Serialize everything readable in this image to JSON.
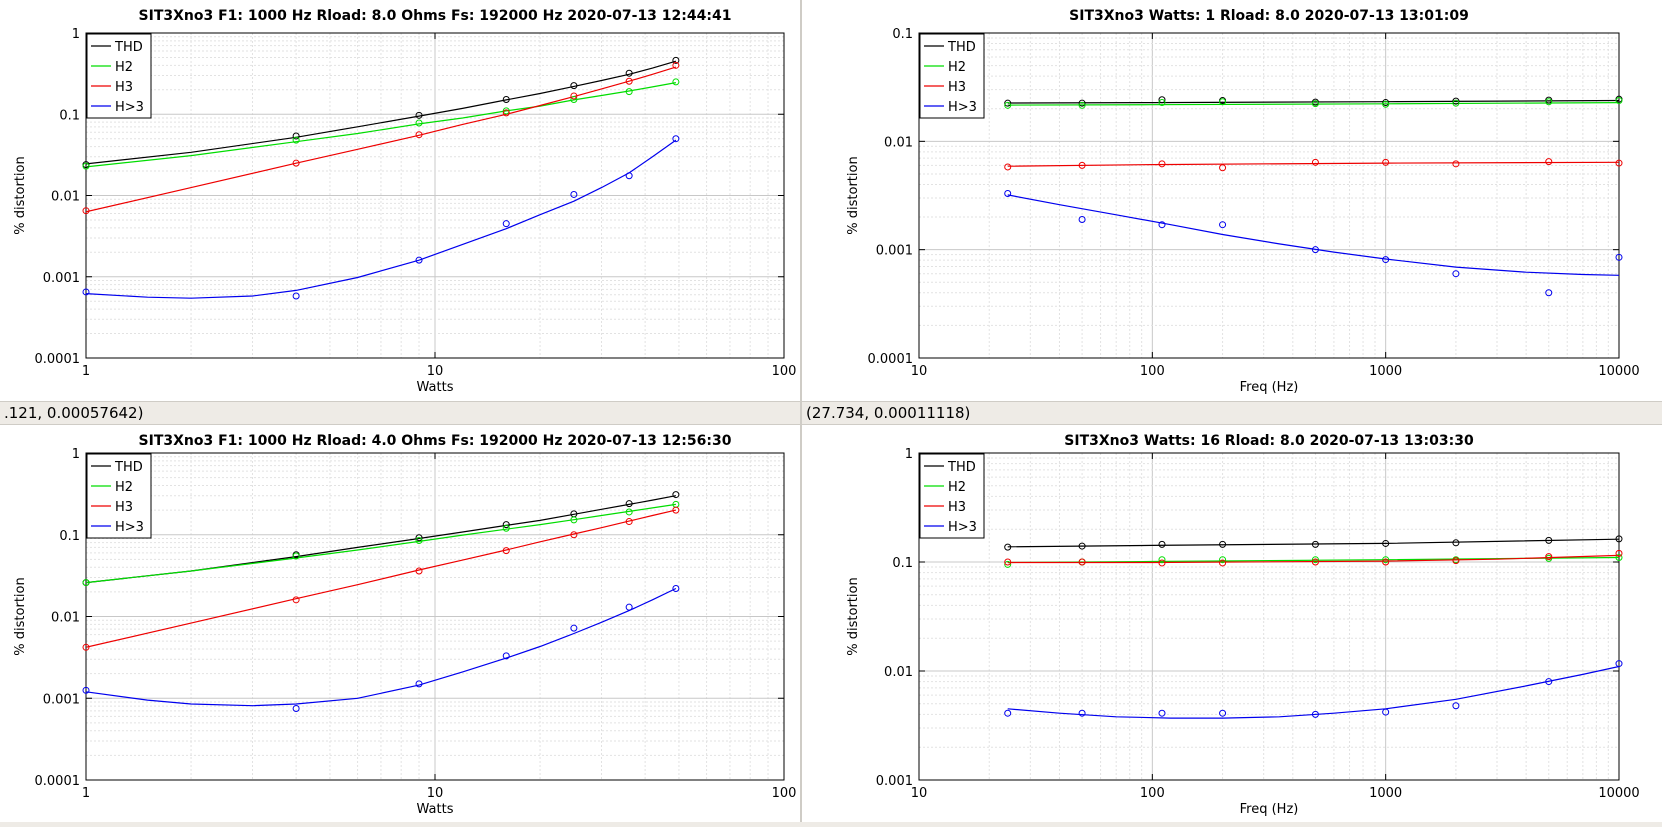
{
  "status": {
    "left_coords": ".121, 0.00057642)",
    "right_coords": "(27.734, 0.00011118)"
  },
  "colors": {
    "THD": "#000000",
    "H2": "#00dd00",
    "H3": "#ee0000",
    "H>3": "#0000ee"
  },
  "chart_data": [
    {
      "type": "line",
      "title": "SIT3Xno3   F1: 1000 Hz   Rload: 8.0 Ohms   Fs: 192000 Hz  2020-07-13 12:44:41",
      "xlabel": "Watts",
      "ylabel": "% distortion",
      "xscale": "log",
      "yscale": "log",
      "xlim": [
        1,
        100
      ],
      "ylim": [
        0.0001,
        1
      ],
      "xticks": [
        1,
        10,
        100
      ],
      "xticklabels": [
        "1",
        "10",
        "100"
      ],
      "yticks": [
        0.0001,
        0.001,
        0.01,
        0.1,
        1
      ],
      "yticklabels": [
        "0.0001",
        "0.001",
        "0.01",
        "0.1",
        "1"
      ],
      "grid": true,
      "legend_position": "top-left",
      "series": [
        {
          "name": "THD",
          "x": [
            1,
            4,
            9,
            16,
            25,
            36,
            49
          ],
          "y": [
            0.024,
            0.054,
            0.097,
            0.152,
            0.225,
            0.32,
            0.46
          ]
        },
        {
          "name": "H2",
          "x": [
            1,
            4,
            9,
            16,
            25,
            36,
            49
          ],
          "y": [
            0.023,
            0.048,
            0.078,
            0.11,
            0.152,
            0.19,
            0.25
          ]
        },
        {
          "name": "H3",
          "x": [
            1,
            4,
            9,
            16,
            25,
            36,
            49
          ],
          "y": [
            0.0065,
            0.025,
            0.056,
            0.104,
            0.168,
            0.255,
            0.4
          ]
        },
        {
          "name": "H>3",
          "x": [
            1,
            4,
            9,
            16,
            25,
            36,
            49
          ],
          "y": [
            0.00065,
            0.00058,
            0.0016,
            0.0045,
            0.0103,
            0.0175,
            0.05
          ]
        }
      ],
      "fits": [
        {
          "name": "THD",
          "x": [
            1,
            2,
            4,
            6,
            9,
            12,
            16,
            20,
            25,
            30,
            36,
            42,
            49
          ],
          "y": [
            0.0245,
            0.034,
            0.052,
            0.07,
            0.095,
            0.118,
            0.15,
            0.18,
            0.22,
            0.26,
            0.31,
            0.37,
            0.45
          ]
        },
        {
          "name": "H2",
          "x": [
            1,
            2,
            4,
            6,
            9,
            12,
            16,
            20,
            25,
            30,
            36,
            42,
            49
          ],
          "y": [
            0.0225,
            0.031,
            0.046,
            0.058,
            0.076,
            0.09,
            0.11,
            0.126,
            0.15,
            0.17,
            0.193,
            0.217,
            0.245
          ]
        },
        {
          "name": "H3",
          "x": [
            1,
            2,
            4,
            6,
            9,
            12,
            16,
            20,
            25,
            30,
            36,
            42,
            49
          ],
          "y": [
            0.0063,
            0.0125,
            0.025,
            0.037,
            0.055,
            0.075,
            0.1,
            0.128,
            0.165,
            0.205,
            0.255,
            0.31,
            0.38
          ]
        },
        {
          "name": "H>3",
          "x": [
            1,
            1.5,
            2,
            3,
            4,
            6,
            9,
            12,
            16,
            20,
            25,
            30,
            36,
            42,
            49
          ],
          "y": [
            0.00062,
            0.00056,
            0.000545,
            0.00058,
            0.00068,
            0.00098,
            0.0016,
            0.0025,
            0.0039,
            0.0058,
            0.0085,
            0.0125,
            0.019,
            0.03,
            0.048
          ]
        }
      ]
    },
    {
      "type": "line",
      "title": "SIT3Xno3   Watts:    1   Rload: 8.0   2020-07-13 13:01:09",
      "xlabel": "Freq (Hz)",
      "ylabel": "% distortion",
      "xscale": "log",
      "yscale": "log",
      "xlim": [
        10,
        10000
      ],
      "ylim": [
        0.0001,
        0.1
      ],
      "xticks": [
        10,
        100,
        1000,
        10000
      ],
      "xticklabels": [
        "10",
        "100",
        "1000",
        "10000"
      ],
      "yticks": [
        0.0001,
        0.001,
        0.01,
        0.1
      ],
      "yticklabels": [
        "0.0001",
        "0.001",
        "0.01",
        "0.1"
      ],
      "grid": true,
      "legend_position": "top-left",
      "series": [
        {
          "name": "THD",
          "x": [
            24,
            50,
            110,
            200,
            500,
            1000,
            2000,
            5000,
            10000
          ],
          "y": [
            0.0225,
            0.0225,
            0.0242,
            0.0238,
            0.023,
            0.0228,
            0.0235,
            0.024,
            0.0245
          ]
        },
        {
          "name": "H2",
          "x": [
            24,
            50,
            110,
            200,
            500,
            1000,
            2000,
            5000,
            10000
          ],
          "y": [
            0.0215,
            0.0215,
            0.0228,
            0.0232,
            0.0223,
            0.022,
            0.0225,
            0.0232,
            0.0238
          ]
        },
        {
          "name": "H3",
          "x": [
            24,
            50,
            110,
            200,
            500,
            1000,
            2000,
            5000,
            10000
          ],
          "y": [
            0.0058,
            0.006,
            0.0062,
            0.0057,
            0.0064,
            0.0064,
            0.0062,
            0.0065,
            0.0063
          ]
        },
        {
          "name": "H>3",
          "x": [
            24,
            50,
            110,
            200,
            500,
            1000,
            2000,
            5000,
            10000
          ],
          "y": [
            0.0033,
            0.0019,
            0.0017,
            0.0017,
            0.001,
            0.00081,
            0.0006,
            0.0004,
            0.00085
          ]
        }
      ],
      "fits": [
        {
          "name": "THD",
          "x": [
            24,
            100,
            1000,
            10000
          ],
          "y": [
            0.0226,
            0.0228,
            0.0232,
            0.0238
          ]
        },
        {
          "name": "H2",
          "x": [
            24,
            100,
            1000,
            10000
          ],
          "y": [
            0.0216,
            0.0218,
            0.0222,
            0.0228
          ]
        },
        {
          "name": "H3",
          "x": [
            24,
            100,
            1000,
            10000
          ],
          "y": [
            0.0059,
            0.0061,
            0.0063,
            0.0064
          ]
        },
        {
          "name": "H>3",
          "x": [
            24,
            40,
            70,
            120,
            200,
            350,
            600,
            1000,
            2000,
            4000,
            7000,
            10000
          ],
          "y": [
            0.0032,
            0.0026,
            0.0021,
            0.0017,
            0.00138,
            0.00113,
            0.00095,
            0.00082,
            0.00069,
            0.00062,
            0.00059,
            0.00058
          ]
        }
      ]
    },
    {
      "type": "line",
      "title": "SIT3Xno3   F1: 1000 Hz   Rload: 4.0 Ohms   Fs: 192000 Hz  2020-07-13 12:56:30",
      "xlabel": "Watts",
      "ylabel": "% distortion",
      "xscale": "log",
      "yscale": "log",
      "xlim": [
        1,
        100
      ],
      "ylim": [
        0.0001,
        1
      ],
      "xticks": [
        1,
        10,
        100
      ],
      "xticklabels": [
        "1",
        "10",
        "100"
      ],
      "yticks": [
        0.0001,
        0.001,
        0.01,
        0.1,
        1
      ],
      "yticklabels": [
        "0.0001",
        "0.001",
        "0.01",
        "0.1",
        "1"
      ],
      "grid": true,
      "legend_position": "top-left",
      "series": [
        {
          "name": "THD",
          "x": [
            1,
            4,
            9,
            16,
            25,
            36,
            49
          ],
          "y": [
            0.026,
            0.057,
            0.092,
            0.133,
            0.18,
            0.24,
            0.31
          ]
        },
        {
          "name": "H2",
          "x": [
            1,
            4,
            9,
            16,
            25,
            36,
            49
          ],
          "y": [
            0.026,
            0.055,
            0.085,
            0.12,
            0.152,
            0.19,
            0.235
          ]
        },
        {
          "name": "H3",
          "x": [
            1,
            4,
            9,
            16,
            25,
            36,
            49
          ],
          "y": [
            0.0042,
            0.016,
            0.036,
            0.064,
            0.1,
            0.145,
            0.2
          ]
        },
        {
          "name": "H>3",
          "x": [
            1,
            4,
            9,
            16,
            25,
            36,
            49
          ],
          "y": [
            0.00125,
            0.00075,
            0.0015,
            0.0033,
            0.0072,
            0.013,
            0.022
          ]
        }
      ],
      "fits": [
        {
          "name": "THD",
          "x": [
            1,
            2,
            4,
            6,
            9,
            12,
            16,
            20,
            25,
            30,
            36,
            42,
            49
          ],
          "y": [
            0.026,
            0.036,
            0.054,
            0.07,
            0.09,
            0.108,
            0.13,
            0.15,
            0.178,
            0.205,
            0.235,
            0.265,
            0.3
          ]
        },
        {
          "name": "H2",
          "x": [
            1,
            2,
            4,
            6,
            9,
            12,
            16,
            20,
            25,
            30,
            36,
            42,
            49
          ],
          "y": [
            0.026,
            0.036,
            0.052,
            0.065,
            0.083,
            0.099,
            0.117,
            0.133,
            0.153,
            0.172,
            0.193,
            0.213,
            0.235
          ]
        },
        {
          "name": "H3",
          "x": [
            1,
            2,
            4,
            6,
            9,
            12,
            16,
            20,
            25,
            30,
            36,
            42,
            49
          ],
          "y": [
            0.0042,
            0.0083,
            0.0165,
            0.0245,
            0.037,
            0.049,
            0.065,
            0.082,
            0.102,
            0.122,
            0.147,
            0.172,
            0.2
          ]
        },
        {
          "name": "H>3",
          "x": [
            1,
            1.5,
            2,
            3,
            4,
            6,
            9,
            12,
            16,
            20,
            25,
            30,
            36,
            42,
            49
          ],
          "y": [
            0.0012,
            0.00095,
            0.00085,
            0.00081,
            0.00085,
            0.001,
            0.00145,
            0.0021,
            0.0031,
            0.0043,
            0.0062,
            0.0085,
            0.0118,
            0.016,
            0.022
          ]
        }
      ]
    },
    {
      "type": "line",
      "title": "SIT3Xno3   Watts:   16   Rload: 8.0   2020-07-13 13:03:30",
      "xlabel": "Freq (Hz)",
      "ylabel": "% distortion",
      "xscale": "log",
      "yscale": "log",
      "xlim": [
        10,
        10000
      ],
      "ylim": [
        0.001,
        1
      ],
      "xticks": [
        10,
        100,
        1000,
        10000
      ],
      "xticklabels": [
        "10",
        "100",
        "1000",
        "10000"
      ],
      "yticks": [
        0.001,
        0.01,
        0.1,
        1
      ],
      "yticklabels": [
        "0.001",
        "0.01",
        "0.1",
        "1"
      ],
      "grid": true,
      "legend_position": "top-left",
      "series": [
        {
          "name": "THD",
          "x": [
            24,
            50,
            110,
            200,
            500,
            1000,
            2000,
            5000,
            10000
          ],
          "y": [
            0.137,
            0.14,
            0.145,
            0.145,
            0.145,
            0.148,
            0.15,
            0.158,
            0.163
          ]
        },
        {
          "name": "H2",
          "x": [
            24,
            50,
            110,
            200,
            500,
            1000,
            2000,
            5000,
            10000
          ],
          "y": [
            0.095,
            0.1,
            0.105,
            0.105,
            0.105,
            0.105,
            0.105,
            0.108,
            0.11
          ]
        },
        {
          "name": "H3",
          "x": [
            24,
            50,
            110,
            200,
            500,
            1000,
            2000,
            5000,
            10000
          ],
          "y": [
            0.1,
            0.1,
            0.098,
            0.098,
            0.1,
            0.1,
            0.103,
            0.112,
            0.12
          ]
        },
        {
          "name": "H>3",
          "x": [
            24,
            50,
            110,
            200,
            500,
            1000,
            2000,
            5000,
            10000
          ],
          "y": [
            0.0041,
            0.0041,
            0.0041,
            0.0041,
            0.004,
            0.0042,
            0.0048,
            0.008,
            0.0117
          ]
        }
      ],
      "fits": [
        {
          "name": "THD",
          "x": [
            24,
            100,
            1000,
            10000
          ],
          "y": [
            0.138,
            0.142,
            0.148,
            0.162
          ]
        },
        {
          "name": "H2",
          "x": [
            24,
            100,
            1000,
            10000
          ],
          "y": [
            0.099,
            0.101,
            0.105,
            0.11
          ]
        },
        {
          "name": "H3",
          "x": [
            24,
            100,
            1000,
            3000,
            10000
          ],
          "y": [
            0.099,
            0.099,
            0.102,
            0.106,
            0.115
          ]
        },
        {
          "name": "H>3",
          "x": [
            24,
            40,
            70,
            120,
            200,
            350,
            600,
            1000,
            2000,
            4000,
            7000,
            10000
          ],
          "y": [
            0.0045,
            0.0041,
            0.0038,
            0.0037,
            0.0037,
            0.0038,
            0.0041,
            0.0045,
            0.0055,
            0.0073,
            0.0093,
            0.011
          ]
        }
      ]
    }
  ]
}
